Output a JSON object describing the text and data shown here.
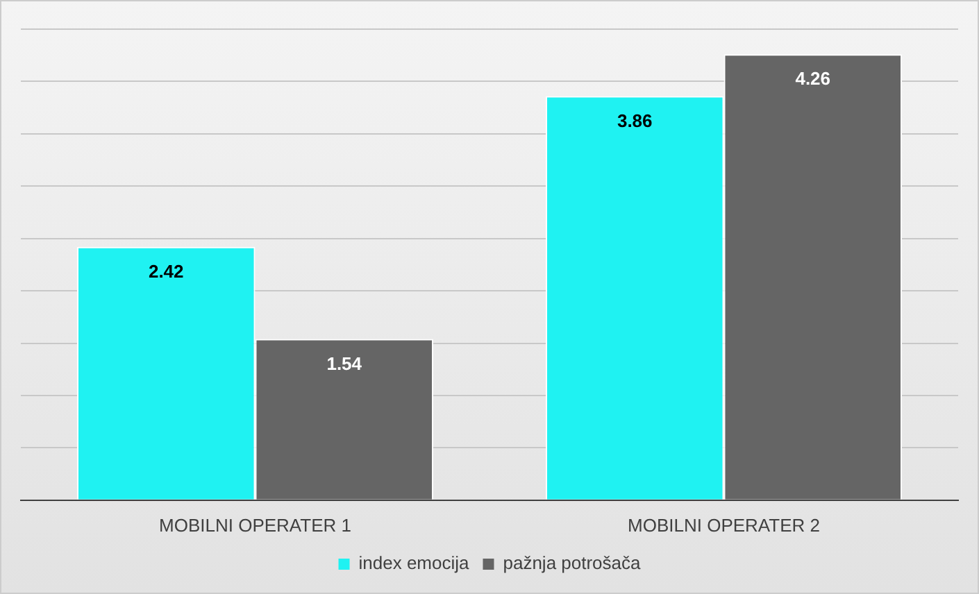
{
  "chart_data": {
    "type": "bar",
    "categories": [
      "MOBILNI OPERATER 1",
      "MOBILNI OPERATER 2"
    ],
    "series": [
      {
        "name": "index emocija",
        "color": "#1ff2f2",
        "values": [
          2.42,
          3.86
        ]
      },
      {
        "name": "pažnja potrošača",
        "color": "#656565",
        "values": [
          1.54,
          4.26
        ]
      }
    ],
    "ylim": [
      0,
      4.5
    ],
    "yticks": [
      {
        "value": 0,
        "label": null
      },
      {
        "value": 0.5,
        "label": null
      },
      {
        "value": 1,
        "label": null
      },
      {
        "value": 1.5,
        "label": null
      },
      {
        "value": 2,
        "label": null
      },
      {
        "value": 2.5,
        "label": null
      },
      {
        "value": 3,
        "label": null
      },
      {
        "value": 3.5,
        "label": null
      },
      {
        "value": 4,
        "label": null
      },
      {
        "value": 4.5,
        "label": null
      }
    ],
    "grid": "y",
    "legend": "bottom",
    "tick_labels": "x",
    "data_labels": true
  }
}
